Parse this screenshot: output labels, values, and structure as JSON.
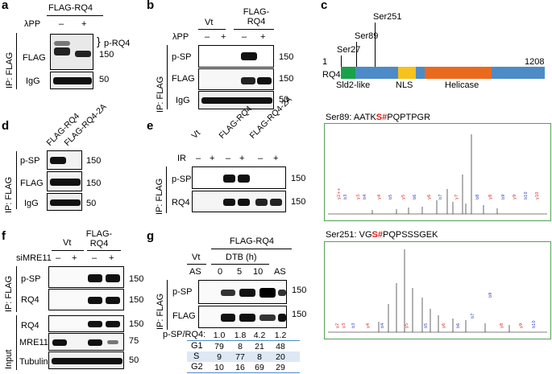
{
  "panels": {
    "a": {
      "label": "a",
      "construct": "FLAG-RQ4",
      "lpp_label": "λPP",
      "lpp_signs": [
        "–",
        "+"
      ],
      "ip_label": "IP: FLAG",
      "rows": [
        "FLAG",
        "IgG"
      ],
      "phospho_label": "p-RQ4",
      "markers": [
        "150",
        "50"
      ]
    },
    "b": {
      "label": "b",
      "col_groups": [
        "Vt",
        "FLAG-RQ4"
      ],
      "lpp_label": "λPP",
      "lpp_signs": [
        "–",
        "+",
        "–",
        "+"
      ],
      "ip_label": "IP: FLAG",
      "rows": [
        "p-SP",
        "FLAG",
        "IgG"
      ],
      "markers": [
        "150",
        "150",
        "50"
      ]
    },
    "c": {
      "label": "c",
      "sites": [
        "Ser27",
        "Ser89",
        "Ser251"
      ],
      "start": "1",
      "end": "1208",
      "protein": "RQ4",
      "domains": [
        "Sld2-like",
        "NLS",
        "Helicase"
      ],
      "colors": {
        "sld2": "#1aa14b",
        "nls": "#f6c21b",
        "helicase": "#ea6a1d",
        "backbone": "#4d8bc8",
        "spec_red": "#e0201b",
        "spec_blue": "#2b3fc4"
      },
      "spectrum1": {
        "site": "Ser89",
        "prefix": "AATK",
        "site_residue": "S",
        "mark": "#",
        "suffix": "PQPTPGR"
      },
      "spectrum2": {
        "site": "Ser251",
        "prefix": "VG",
        "site_residue": "S",
        "mark": "#",
        "suffix": "PQPSSSGEK"
      }
    },
    "d": {
      "label": "d",
      "columns": [
        "FLAG-RQ4",
        "FLAG-RQ4-2A"
      ],
      "ip_label": "IP: FLAG",
      "rows": [
        "p-SP",
        "FLAG",
        "IgG"
      ],
      "markers": [
        "150",
        "150",
        "50"
      ]
    },
    "e": {
      "label": "e",
      "columns": [
        "Vt",
        "FLAG-RQ4",
        "FLAG-RQ4-2A"
      ],
      "ir_label": "IR",
      "ir_signs": [
        "–",
        "+",
        "–",
        "+",
        "–",
        "+"
      ],
      "ip_label": "IP: FLAG",
      "rows": [
        "p-SP",
        "RQ4"
      ],
      "markers": [
        "150",
        "150"
      ]
    },
    "f": {
      "label": "f",
      "col_groups": [
        "Vt",
        "FLAG-RQ4"
      ],
      "si_label": "siMRE11",
      "si_signs": [
        "–",
        "+",
        "–",
        "+"
      ],
      "ip_label": "IP: FLAG",
      "input_label": "Input",
      "ip_rows": [
        "p-SP",
        "RQ4"
      ],
      "input_rows": [
        "RQ4",
        "MRE11",
        "Tubulin"
      ],
      "markers": [
        "150",
        "150",
        "150",
        "75",
        "50"
      ]
    },
    "g": {
      "label": "g",
      "construct": "FLAG-RQ4",
      "vt_label": "Vt",
      "dtb_label": "DTB (h)",
      "col_labels": [
        "AS",
        "0",
        "5",
        "10",
        "AS"
      ],
      "ip_label": "IP: FLAG",
      "rows": [
        "p-SP",
        "FLAG"
      ],
      "markers": [
        "150",
        "150"
      ],
      "ratio_label": "p-SP/RQ4:",
      "ratios": [
        "1.0",
        "1.8",
        "4.2",
        "1.2"
      ],
      "table": [
        {
          "phase": "G1",
          "values": [
            "79",
            "8",
            "21",
            "48"
          ]
        },
        {
          "phase": "S",
          "values": [
            "9",
            "77",
            "8",
            "20"
          ]
        },
        {
          "phase": "G2",
          "values": [
            "10",
            "16",
            "69",
            "29"
          ]
        }
      ]
    }
  }
}
